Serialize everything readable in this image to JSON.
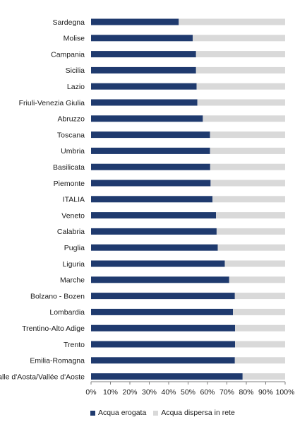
{
  "chart_data": {
    "type": "bar",
    "orientation": "horizontal",
    "stacked": true,
    "categories": [
      "Sardegna",
      "Molise",
      "Campania",
      "Sicilia",
      "Lazio",
      "Friuli-Venezia Giulia",
      "Abruzzo",
      "Toscana",
      "Umbria",
      "Basilicata",
      "Piemonte",
      "ITALIA",
      "Veneto",
      "Calabria",
      "Puglia",
      "Liguria",
      "Marche",
      "Bolzano - Bozen",
      "Lombardia",
      "Trentino-Alto Adige",
      "Trento",
      "Emilia-Romagna",
      "Valle d'Aosta/Vallée d'Aoste"
    ],
    "series": [
      {
        "name": "Acqua erogata",
        "color": "#1f3a6e",
        "values": [
          45.2,
          52.4,
          54.1,
          54.1,
          54.4,
          54.8,
          57.6,
          61.3,
          61.3,
          61.4,
          61.6,
          62.6,
          64.4,
          64.7,
          65.3,
          68.9,
          71.2,
          74.1,
          73.1,
          74.2,
          74.2,
          74.1,
          78.1
        ]
      },
      {
        "name": "Acqua dispersa in rete",
        "color": "#d9d9d9",
        "values": [
          54.8,
          47.6,
          45.9,
          45.9,
          45.6,
          45.2,
          42.4,
          38.7,
          38.7,
          38.6,
          38.4,
          37.4,
          35.6,
          35.3,
          34.7,
          31.1,
          28.8,
          25.9,
          26.9,
          25.8,
          25.8,
          25.9,
          21.9
        ]
      }
    ],
    "xticks": [
      "0%",
      "10%",
      "20%",
      "30%",
      "40%",
      "50%",
      "60%",
      "70%",
      "80%",
      "90%",
      "100%"
    ],
    "xlim": [
      0,
      100
    ],
    "grid": false,
    "legend": "bottom"
  }
}
